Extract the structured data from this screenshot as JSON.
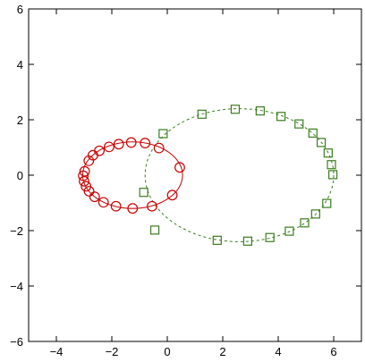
{
  "chart_data": {
    "type": "scatter",
    "title": "",
    "xlabel": "",
    "ylabel": "",
    "xlim": [
      -5,
      7
    ],
    "ylim": [
      -6,
      6
    ],
    "grid": false,
    "x_ticks": [
      -4,
      -2,
      0,
      2,
      4,
      6
    ],
    "y_ticks": [
      -6,
      -4,
      -2,
      0,
      2,
      4,
      6
    ],
    "x_tick_labels": [
      "−4",
      "−2",
      "0",
      "2",
      "4",
      "6"
    ],
    "y_tick_labels": [
      "−6",
      "−4",
      "−2",
      "0",
      "2",
      "4",
      "6"
    ],
    "series": [
      {
        "color": "#cc0000",
        "marker": "circle",
        "line_style": "solid",
        "curve": {
          "center": [
            -1.25,
            0
          ],
          "semi_axes": [
            1.8,
            1.2
          ]
        },
        "points": [
          {
            "x": 0.45,
            "y": 0.28
          },
          {
            "x": 0.18,
            "y": -0.72
          },
          {
            "x": -0.55,
            "y": -1.12
          },
          {
            "x": -1.25,
            "y": -1.2
          },
          {
            "x": -1.85,
            "y": -1.12
          },
          {
            "x": -2.3,
            "y": -0.98
          },
          {
            "x": -2.62,
            "y": -0.78
          },
          {
            "x": -2.82,
            "y": -0.58
          },
          {
            "x": -2.93,
            "y": -0.4
          },
          {
            "x": -3.0,
            "y": -0.22
          },
          {
            "x": -3.03,
            "y": -0.02
          },
          {
            "x": -2.98,
            "y": 0.14
          },
          {
            "x": -2.83,
            "y": 0.52
          },
          {
            "x": -2.68,
            "y": 0.72
          },
          {
            "x": -2.45,
            "y": 0.88
          },
          {
            "x": -2.1,
            "y": 1.02
          },
          {
            "x": -1.75,
            "y": 1.12
          },
          {
            "x": -1.3,
            "y": 1.18
          },
          {
            "x": -0.8,
            "y": 1.16
          },
          {
            "x": -0.3,
            "y": 0.98
          }
        ]
      },
      {
        "color": "#3a7d1e",
        "marker": "square",
        "line_style": "dashed",
        "curve": {
          "center": [
            2.6,
            0
          ],
          "semi_axes": [
            3.4,
            2.4
          ]
        },
        "points": [
          {
            "x": -0.85,
            "y": -0.62
          },
          {
            "x": -0.15,
            "y": 1.5
          },
          {
            "x": 1.25,
            "y": 2.2
          },
          {
            "x": 2.45,
            "y": 2.38
          },
          {
            "x": 3.35,
            "y": 2.32
          },
          {
            "x": 4.1,
            "y": 2.12
          },
          {
            "x": 4.75,
            "y": 1.85
          },
          {
            "x": 5.25,
            "y": 1.52
          },
          {
            "x": 5.55,
            "y": 1.18
          },
          {
            "x": 5.8,
            "y": 0.8
          },
          {
            "x": 5.92,
            "y": 0.38
          },
          {
            "x": 5.97,
            "y": 0.02
          },
          {
            "x": -0.45,
            "y": -1.98
          },
          {
            "x": 1.8,
            "y": -2.35
          },
          {
            "x": 2.9,
            "y": -2.38
          },
          {
            "x": 3.7,
            "y": -2.25
          },
          {
            "x": 4.4,
            "y": -2.02
          },
          {
            "x": 4.95,
            "y": -1.72
          },
          {
            "x": 5.35,
            "y": -1.4
          },
          {
            "x": 5.75,
            "y": -1.02
          }
        ]
      }
    ]
  }
}
